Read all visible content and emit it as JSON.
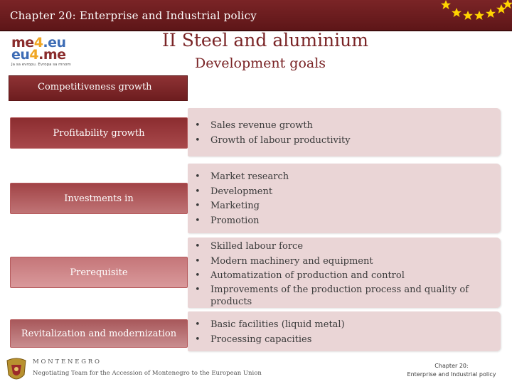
{
  "header": {
    "title": "Chapter 20: Enterprise and Industrial policy"
  },
  "logo": {
    "line1_a": "me",
    "line1_b": "4",
    "line1_c": ".eu",
    "line2_a": "eu",
    "line2_b": "4",
    "line2_c": ".me",
    "tagline": "Ja sa evropu. Evropa sa mnom"
  },
  "slide": {
    "title": "II   Steel and aluminium",
    "subtitle": "Development goals"
  },
  "competitiveness": {
    "label": "Competitiveness growth"
  },
  "rows": [
    {
      "label": "Profitability growth",
      "items": [
        "Sales revenue growth",
        "Growth of labour productivity"
      ]
    },
    {
      "label": "Investments in",
      "items": [
        "Market research",
        "Development",
        "Marketing",
        "Promotion"
      ]
    },
    {
      "label": "Prerequisite",
      "items": [
        "Skilled labour force",
        "Modern machinery and equipment",
        "Automatization of production and control",
        "Improvements of the production process and quality of products"
      ]
    },
    {
      "label": "Revitalization and modernization",
      "items": [
        "Basic facilities (liquid metal)",
        "Processing capacities"
      ]
    }
  ],
  "bullet": "•",
  "footer": {
    "country": "MONTENEGRO",
    "team": "Negotiating Team for the Accession of Montenegro to the European Union",
    "chapter_line1": "Chapter 20:",
    "chapter_line2": "Enterprise and Industrial policy"
  },
  "colors": {
    "brand": "#7a2426",
    "panel": "#ead5d6",
    "star": "#ffd400"
  }
}
